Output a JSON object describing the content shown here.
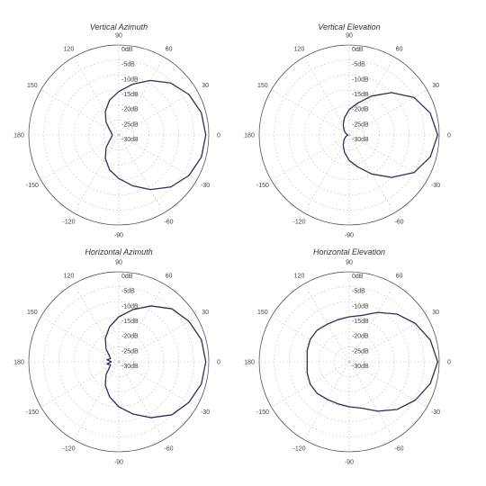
{
  "style": {
    "pattern_color": "#2b2f5a"
  },
  "chart_data": [
    {
      "type": "polar",
      "title": "Vertical Azimuth",
      "angle_ticks": [
        90,
        60,
        30,
        0,
        -30,
        -60,
        -90,
        -120,
        -150,
        180,
        150,
        120
      ],
      "radial_ticks": [
        "0dB",
        "-5dB",
        "-10dB",
        "-15dB",
        "-20dB",
        "-25dB",
        "-30dB"
      ],
      "rlim_db": [
        -30,
        0
      ],
      "series": [
        {
          "angle_deg": [
            0,
            15,
            30,
            45,
            60,
            75,
            90,
            105,
            120,
            135,
            150,
            165,
            180,
            195,
            210,
            225,
            240,
            255,
            270,
            285,
            300,
            315,
            330,
            345,
            360
          ],
          "gain_db": [
            -1,
            -1.5,
            -3,
            -5.5,
            -9,
            -12.5,
            -15.5,
            -18,
            -21,
            -24,
            -26.5,
            -27.5,
            -27.8,
            -27.5,
            -26.5,
            -24,
            -21,
            -18,
            -15.5,
            -12.5,
            -9,
            -5.5,
            -3,
            -1.5,
            -1
          ]
        }
      ]
    },
    {
      "type": "polar",
      "title": "Vertical Elevation",
      "angle_ticks": [
        90,
        60,
        30,
        0,
        -30,
        -60,
        -90,
        -120,
        -150,
        180,
        150,
        120
      ],
      "radial_ticks": [
        "0dB",
        "-5dB",
        "-10dB",
        "-15dB",
        "-20dB",
        "-25dB",
        "-30dB"
      ],
      "rlim_db": [
        -30,
        0
      ],
      "series": [
        {
          "angle_deg": [
            0,
            15,
            30,
            45,
            60,
            75,
            90,
            105,
            120,
            135,
            150,
            165,
            180,
            195,
            210,
            225,
            240,
            255,
            270,
            285,
            300,
            315,
            330,
            345,
            360
          ],
          "gain_db": [
            -0.5,
            -2,
            -5,
            -10,
            -15,
            -19,
            -21.5,
            -24,
            -26,
            -27.5,
            -28.5,
            -29.2,
            -29.5,
            -29.2,
            -28.5,
            -27.5,
            -26,
            -24,
            -21.5,
            -19,
            -15,
            -10,
            -5,
            -2,
            -0.5
          ]
        }
      ]
    },
    {
      "type": "polar",
      "title": "Horizontal Azimuth",
      "angle_ticks": [
        90,
        60,
        30,
        0,
        -30,
        -60,
        -90,
        -120,
        -150,
        180,
        150,
        120
      ],
      "radial_ticks": [
        "0dB",
        "-5dB",
        "-10dB",
        "-15dB",
        "-20dB",
        "-25dB",
        "-30dB"
      ],
      "rlim_db": [
        -30,
        0
      ],
      "series": [
        {
          "angle_deg": [
            0,
            15,
            30,
            45,
            60,
            75,
            90,
            105,
            120,
            135,
            150,
            160,
            170,
            180,
            190,
            200,
            210,
            225,
            240,
            255,
            270,
            285,
            300,
            315,
            330,
            345,
            360
          ],
          "gain_db": [
            -1,
            -1.5,
            -3,
            -5,
            -8.5,
            -12,
            -15,
            -18,
            -21,
            -24,
            -26.5,
            -27,
            -26,
            -27.5,
            -26,
            -27,
            -26.5,
            -24,
            -21,
            -18,
            -15,
            -12,
            -8.5,
            -5,
            -3,
            -1.5,
            -1
          ]
        }
      ]
    },
    {
      "type": "polar",
      "title": "Horizontal Elevation",
      "angle_ticks": [
        90,
        60,
        30,
        0,
        -30,
        -60,
        -90,
        -120,
        -150,
        180,
        150,
        120
      ],
      "radial_ticks": [
        "0dB",
        "-5dB",
        "-10dB",
        "-15dB",
        "-20dB",
        "-25dB",
        "-30dB"
      ],
      "rlim_db": [
        -30,
        0
      ],
      "series": [
        {
          "angle_deg": [
            0,
            15,
            30,
            45,
            60,
            75,
            90,
            105,
            120,
            135,
            150,
            165,
            180,
            195,
            210,
            225,
            240,
            255,
            270,
            285,
            300,
            315,
            330,
            345,
            360
          ],
          "gain_db": [
            -0.5,
            -2,
            -4.5,
            -7.5,
            -11,
            -14,
            -15,
            -15.5,
            -15.5,
            -15,
            -15,
            -15.5,
            -16,
            -15.5,
            -15,
            -15,
            -15.5,
            -15.5,
            -15,
            -14,
            -11,
            -7.5,
            -4.5,
            -2,
            -0.5
          ]
        }
      ]
    }
  ]
}
